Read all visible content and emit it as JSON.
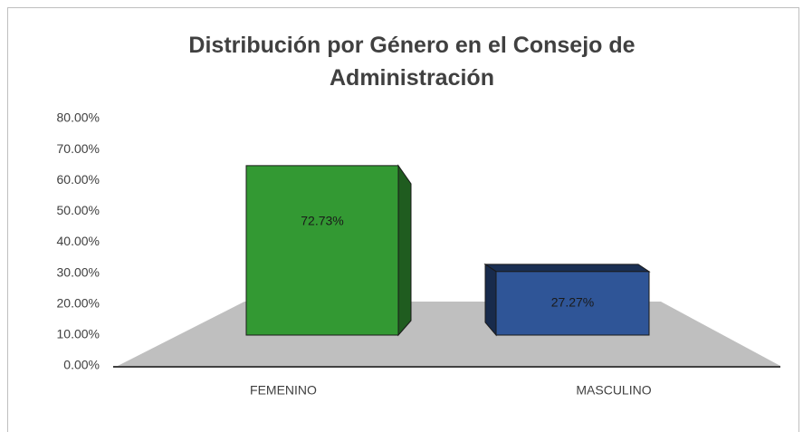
{
  "chart_data": {
    "type": "bar3d",
    "title": "Distribución por Género en el Consejo de Administración",
    "categories": [
      "FEMENINO",
      "MASCULINO"
    ],
    "values": [
      72.73,
      27.27
    ],
    "value_labels": [
      "72.73%",
      "27.27%"
    ],
    "colors": [
      "#339933",
      "#2f5597"
    ],
    "ylim": [
      0,
      80
    ],
    "yticks": [
      {
        "value": 0,
        "label": "0.00%"
      },
      {
        "value": 10,
        "label": "10.00%"
      },
      {
        "value": 20,
        "label": "20.00%"
      },
      {
        "value": 30,
        "label": "30.00%"
      },
      {
        "value": 40,
        "label": "40.00%"
      },
      {
        "value": 50,
        "label": "50.00%"
      },
      {
        "value": 60,
        "label": "60.00%"
      },
      {
        "value": 70,
        "label": "70.00%"
      },
      {
        "value": 80,
        "label": "80.00%"
      }
    ],
    "grid": false
  }
}
